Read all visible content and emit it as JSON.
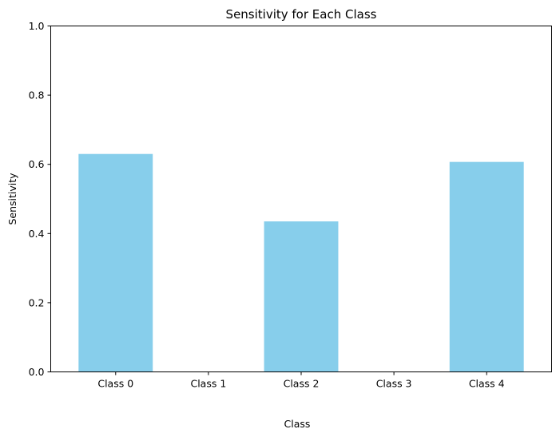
{
  "chart_data": {
    "type": "bar",
    "title": "Sensitivity for Each Class",
    "xlabel": "Class",
    "ylabel": "Sensitivity",
    "categories": [
      "Class 0",
      "Class 1",
      "Class 2",
      "Class 3",
      "Class 4"
    ],
    "values": [
      0.63,
      0.0,
      0.435,
      0.0,
      0.607
    ],
    "ylim": [
      0,
      1
    ],
    "yticks": [
      0.0,
      0.2,
      0.4,
      0.6,
      0.8,
      1.0
    ],
    "ytick_labels": [
      "0.0",
      "0.2",
      "0.4",
      "0.6",
      "0.8",
      "1.0"
    ],
    "grid": false,
    "legend": "none",
    "bar_color": "#87CEEB"
  }
}
